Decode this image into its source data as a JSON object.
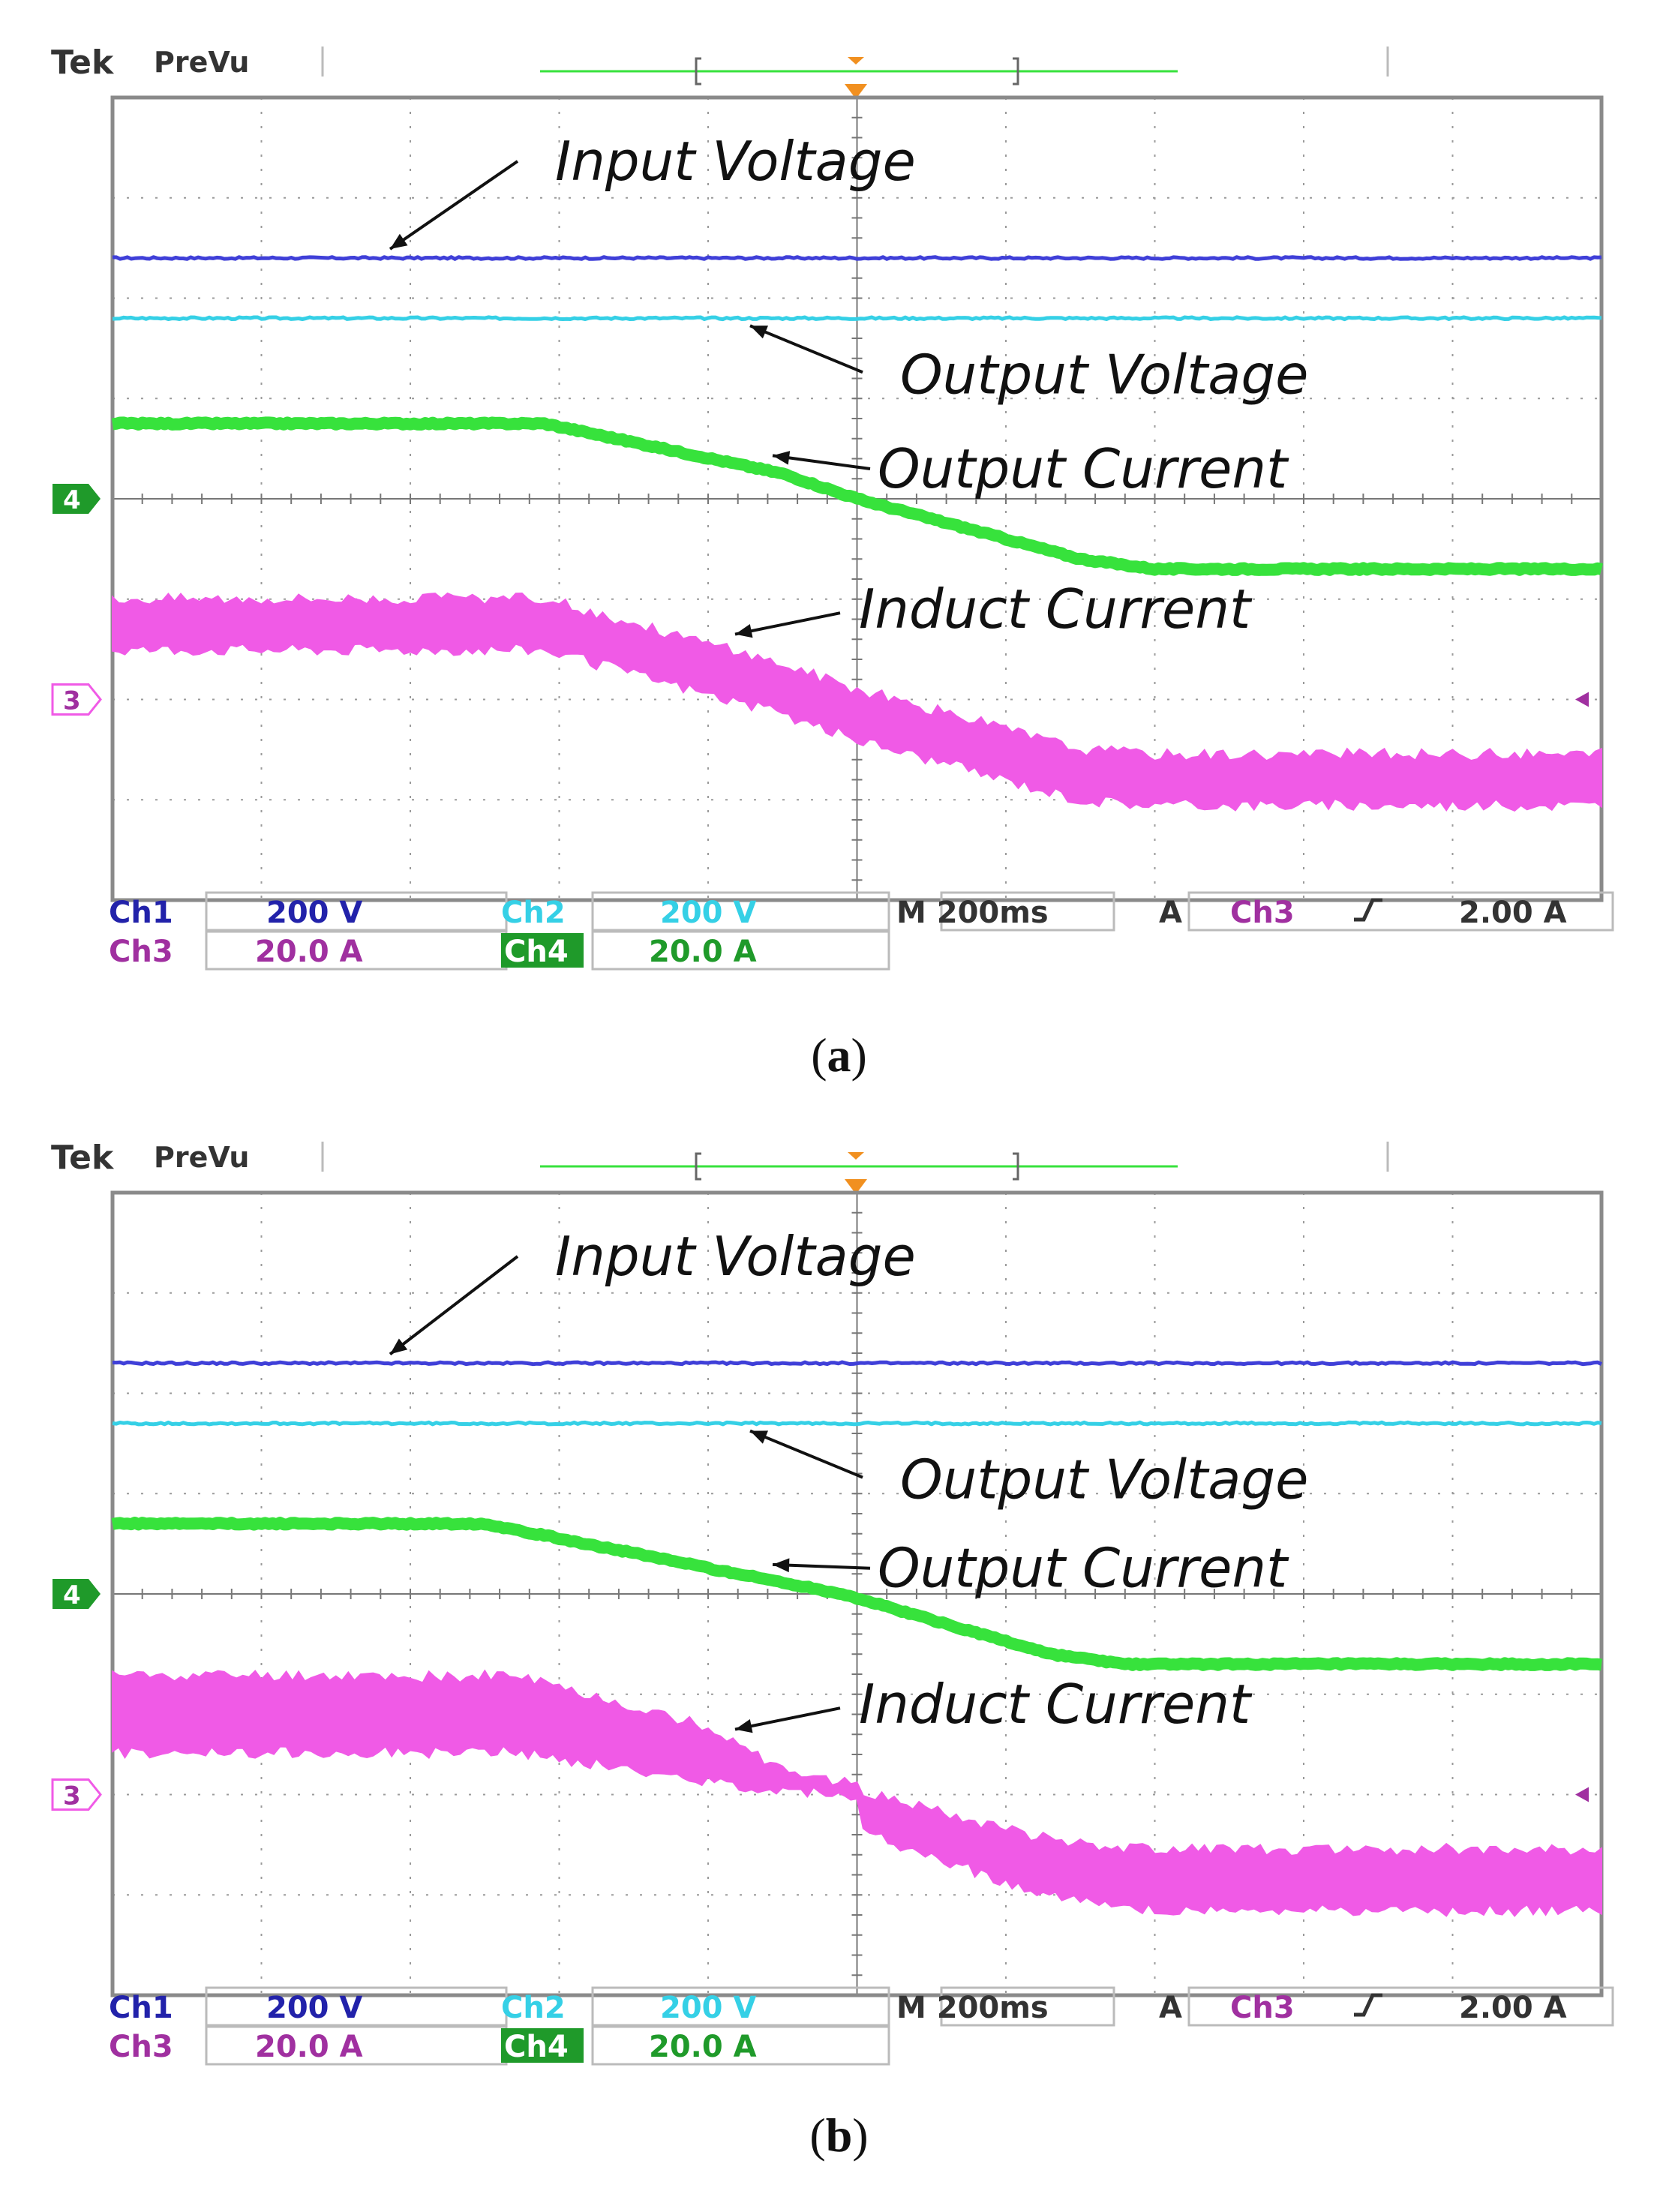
{
  "colors": {
    "ch1": "#3f3fd8",
    "ch2": "#35d0e6",
    "ch3": "#f05ae6",
    "ch4": "#37e23c",
    "grid": "#9a9a9a",
    "frame": "#8a8a8a",
    "label_dark": "#2222aa",
    "ch3_label": "#a030a0",
    "ch4_label": "#1f9a2a"
  },
  "panels": [
    {
      "caption_letter": "a",
      "brand": "Tek",
      "mode": "PreVu",
      "annotations": {
        "input_voltage": "Input Voltage",
        "output_voltage": "Output Voltage",
        "output_current": "Output Current",
        "induct_current": "Induct Current"
      },
      "markers": {
        "ch4": "4",
        "ch3": "3"
      },
      "readout": {
        "ch1_name": "Ch1",
        "ch1_scale": "200 V",
        "ch2_name": "Ch2",
        "ch2_scale": "200 V",
        "ch3_name": "Ch3",
        "ch3_scale": "20.0 A",
        "ch4_name": "Ch4",
        "ch4_scale": "20.0 A",
        "timebase": "M 200ms",
        "trigger_mode": "A",
        "trigger_source": "Ch3",
        "trigger_level": "2.00 A"
      }
    },
    {
      "caption_letter": "b",
      "brand": "Tek",
      "mode": "PreVu",
      "annotations": {
        "input_voltage": "Input Voltage",
        "output_voltage": "Output Voltage",
        "output_current": "Output Current",
        "induct_current": "Induct Current"
      },
      "markers": {
        "ch4": "4",
        "ch3": "3"
      },
      "readout": {
        "ch1_name": "Ch1",
        "ch1_scale": "200 V",
        "ch2_name": "Ch2",
        "ch2_scale": "200 V",
        "ch3_name": "Ch3",
        "ch3_scale": "20.0 A",
        "ch4_name": "Ch4",
        "ch4_scale": "20.0 A",
        "timebase": "M 200ms",
        "trigger_mode": "A",
        "trigger_source": "Ch3",
        "trigger_level": "2.00 A"
      }
    }
  ],
  "chart_data": [
    {
      "type": "line",
      "x_unit": "div",
      "y_unit": "div",
      "xlim": [
        0,
        10
      ],
      "ylim": [
        -4,
        4
      ],
      "grid": true,
      "series": [
        {
          "channel": "Ch1",
          "x": [
            0,
            10
          ],
          "y": [
            2.4,
            2.4
          ]
        },
        {
          "channel": "Ch2",
          "x": [
            0,
            10
          ],
          "y": [
            1.8,
            1.8
          ]
        },
        {
          "channel": "Ch4",
          "x": [
            0,
            2.9,
            4.5,
            5.0,
            6.5,
            7.0,
            10
          ],
          "y": [
            0.75,
            0.75,
            0.25,
            0.0,
            -0.6,
            -0.7,
            -0.7
          ]
        },
        {
          "channel": "Ch3",
          "x": [
            0,
            2.9,
            4.5,
            5.0,
            6.5,
            7.0,
            10
          ],
          "y": [
            -1.25,
            -1.25,
            -1.9,
            -2.15,
            -2.75,
            -2.8,
            -2.8
          ],
          "band_div": 0.5
        }
      ]
    },
    {
      "type": "line",
      "x_unit": "div",
      "y_unit": "div",
      "xlim": [
        0,
        10
      ],
      "ylim": [
        -4,
        4
      ],
      "grid": true,
      "series": [
        {
          "channel": "Ch1",
          "x": [
            0,
            10
          ],
          "y": [
            2.3,
            2.3
          ]
        },
        {
          "channel": "Ch2",
          "x": [
            0,
            10
          ],
          "y": [
            1.7,
            1.7
          ]
        },
        {
          "channel": "Ch4",
          "x": [
            0,
            2.5,
            4.2,
            4.9,
            6.3,
            6.8,
            10
          ],
          "y": [
            0.7,
            0.7,
            0.2,
            0.0,
            -0.6,
            -0.7,
            -0.7
          ]
        },
        {
          "channel": "Ch3",
          "x": [
            0,
            2.7,
            4.0,
            4.5,
            5.0,
            5.0,
            6.2,
            6.8,
            10
          ],
          "y": [
            -1.2,
            -1.2,
            -1.6,
            -1.85,
            -1.95,
            -2.15,
            -2.7,
            -2.85,
            -2.85
          ],
          "band_div": [
            0.75,
            0.75,
            0.55,
            0.2,
            0.1,
            0.4,
            0.55,
            0.6,
            0.6
          ]
        }
      ]
    }
  ]
}
